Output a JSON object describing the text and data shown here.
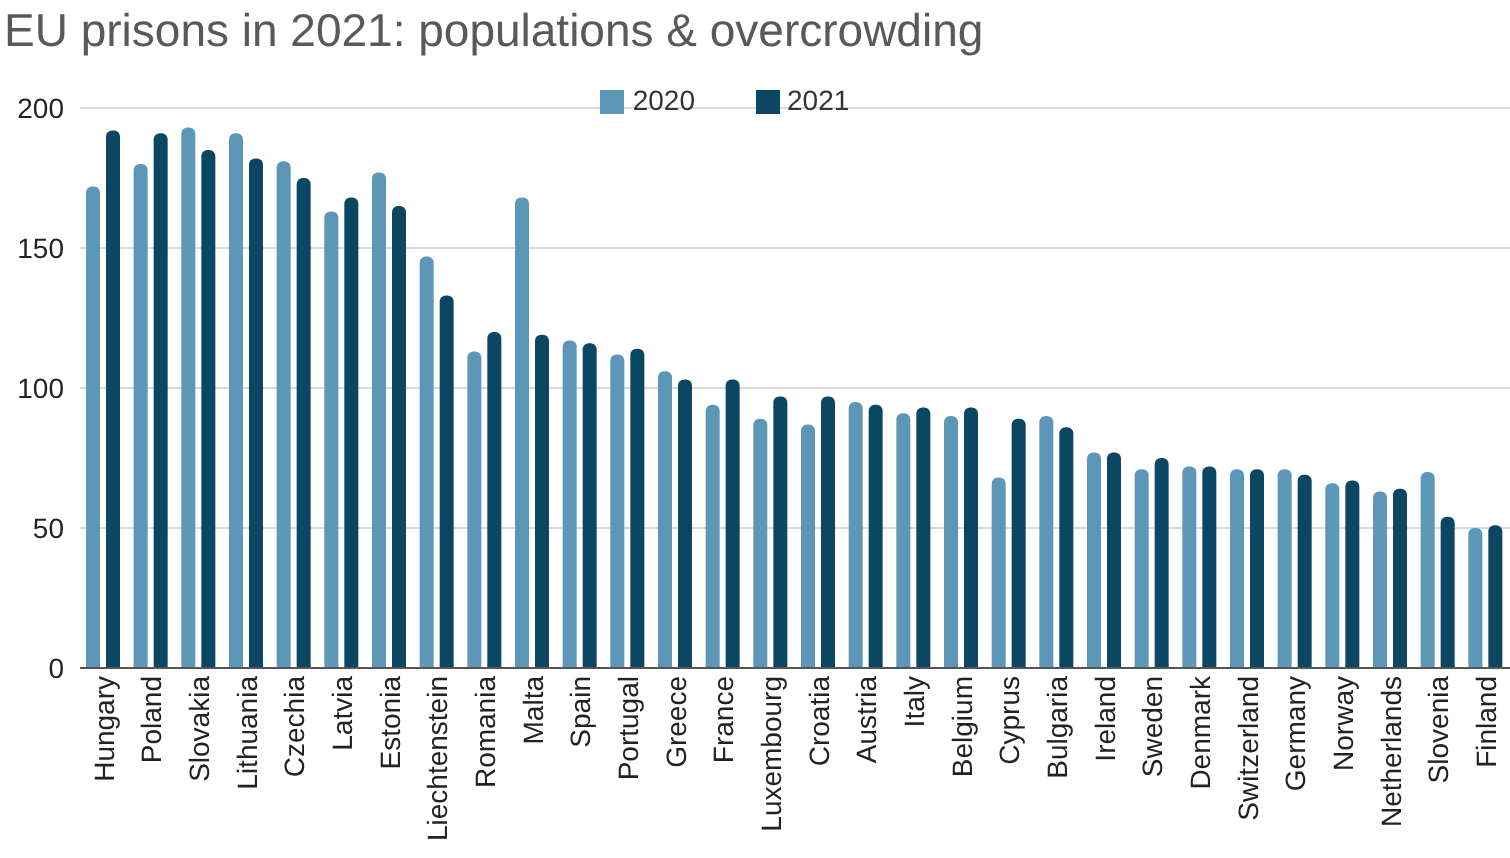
{
  "chart_data": {
    "type": "bar",
    "title": "EU prisons in 2021: populations & overcrowding",
    "categories": [
      "Hungary",
      "Poland",
      "Slovakia",
      "Lithuania",
      "Czechia",
      "Latvia",
      "Estonia",
      "Liechtenstein",
      "Romania",
      "Malta",
      "Spain",
      "Portugal",
      "Greece",
      "France",
      "Luxembourg",
      "Croatia",
      "Austria",
      "Italy",
      "Belgium",
      "Cyprus",
      "Bulgaria",
      "Ireland",
      "Sweden",
      "Denmark",
      "Switzerland",
      "Germany",
      "Norway",
      "Netherlands",
      "Slovenia",
      "Finland"
    ],
    "series": [
      {
        "name": "2020",
        "color": "#5d97b8",
        "values": [
          172,
          180,
          193,
          191,
          181,
          163,
          177,
          147,
          113,
          168,
          117,
          112,
          106,
          94,
          89,
          87,
          95,
          91,
          90,
          68,
          90,
          77,
          71,
          72,
          71,
          71,
          66,
          63,
          70,
          50
        ]
      },
      {
        "name": "2021",
        "color": "#0b4763",
        "values": [
          192,
          191,
          185,
          182,
          175,
          168,
          165,
          133,
          120,
          119,
          116,
          114,
          103,
          103,
          97,
          97,
          94,
          93,
          93,
          89,
          86,
          77,
          75,
          72,
          71,
          69,
          67,
          64,
          54,
          51
        ]
      }
    ],
    "ylim": [
      0,
      200
    ],
    "yticks": [
      0,
      50,
      100,
      150,
      200
    ],
    "grid": "y",
    "legend": "top"
  }
}
